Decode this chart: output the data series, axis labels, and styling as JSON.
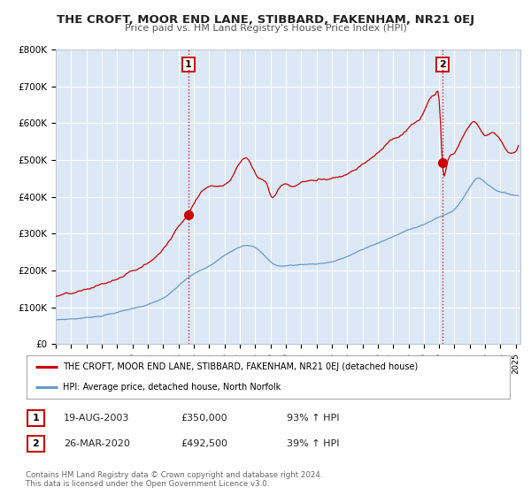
{
  "title": "THE CROFT, MOOR END LANE, STIBBARD, FAKENHAM, NR21 0EJ",
  "subtitle": "Price paid vs. HM Land Registry's House Price Index (HPI)",
  "legend_line1": "THE CROFT, MOOR END LANE, STIBBARD, FAKENHAM, NR21 0EJ (detached house)",
  "legend_line2": "HPI: Average price, detached house, North Norfolk",
  "footer1": "Contains HM Land Registry data © Crown copyright and database right 2024.",
  "footer2": "This data is licensed under the Open Government Licence v3.0.",
  "transaction1_date": "19-AUG-2003",
  "transaction1_price": "£350,000",
  "transaction1_hpi": "93% ↑ HPI",
  "transaction2_date": "26-MAR-2020",
  "transaction2_price": "£492,500",
  "transaction2_hpi": "39% ↑ HPI",
  "property_color": "#cc0000",
  "hpi_color": "#6699cc",
  "background_color": "#dce8f5",
  "grid_color": "#ffffff",
  "transaction1_x": 2003.64,
  "transaction1_y": 350000,
  "transaction2_x": 2020.24,
  "transaction2_y": 492500,
  "ylim": [
    0,
    800000
  ],
  "xlim_start": 1995,
  "xlim_end": 2025.3
}
